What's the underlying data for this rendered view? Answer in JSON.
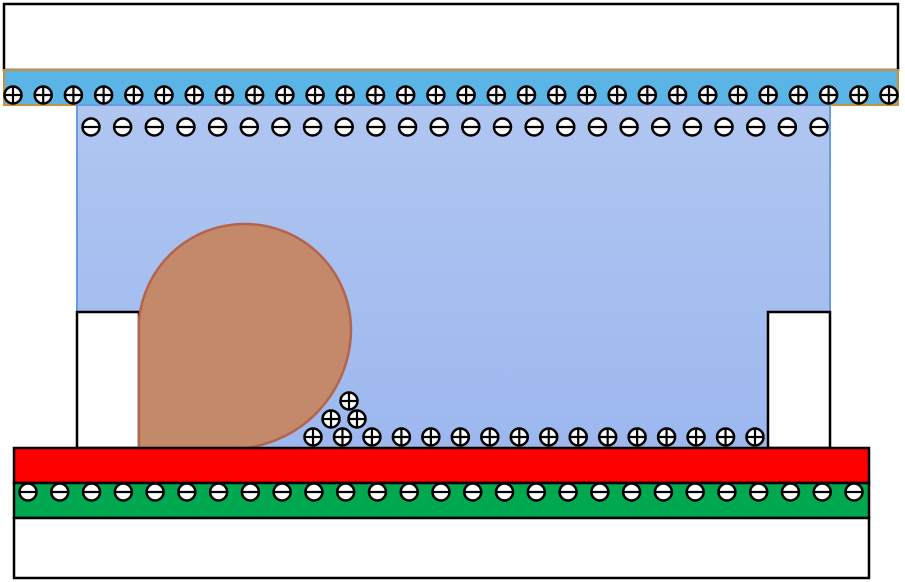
{
  "colors": {
    "top_plate": "#ffffff",
    "top_electrode": "#5ab4e6",
    "top_electrode_border": "#c8913c",
    "liquid_top": "#b0c6f1",
    "liquid_bottom": "#9db8ef",
    "liquid_border": "#6a9be0",
    "droplet_fill": "#c4896a",
    "droplet_border": "#b4644c",
    "red_layer": "#ff0000",
    "green_layer": "#00a84f",
    "bottom_plate": "#ffffff"
  },
  "ions": {
    "top_positive_count": 30,
    "top_negative_count": 24,
    "bottom_positive_count": 16,
    "bottom_negative_count": 27,
    "positive_symbol": "plus-ion",
    "negative_symbol": "minus-ion"
  }
}
